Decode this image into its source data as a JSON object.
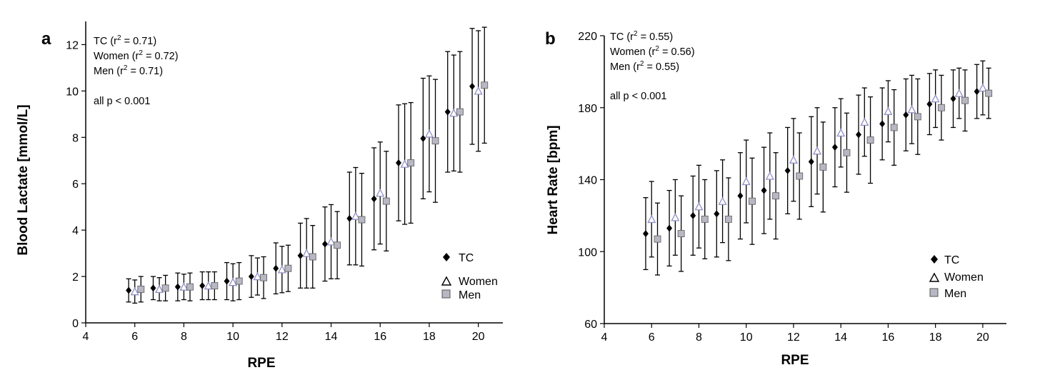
{
  "chart_data": [
    {
      "type": "scatter",
      "panel_label": "a",
      "xlabel": "RPE",
      "ylabel": "Blood Lactate [mmol/L]",
      "xlim": [
        4,
        21
      ],
      "ylim": [
        0,
        13
      ],
      "xticks": [
        4,
        6,
        8,
        10,
        12,
        14,
        16,
        18,
        20
      ],
      "yticks": [
        0,
        2,
        4,
        6,
        8,
        10,
        12
      ],
      "annotations": [
        "TC (r",
        "2",
        " = 0.71)",
        "Women (r",
        "2",
        " = 0.72)",
        "Men (r",
        "2",
        " = 0.71)",
        "all p < 0.001"
      ],
      "annotation_lines": [
        {
          "pre": "TC (r",
          "sup": "2",
          "post": " = 0.71)"
        },
        {
          "pre": "Women (r",
          "sup": "2",
          "post": " = 0.72)"
        },
        {
          "pre": "Men (r",
          "sup": "2",
          "post": " = 0.71)"
        }
      ],
      "annotation_p": "all p < 0.001",
      "legend_position": "bottom-right",
      "x": [
        6,
        7,
        8,
        9,
        10,
        11,
        12,
        13,
        14,
        15,
        16,
        17,
        18,
        19,
        20
      ],
      "series": [
        {
          "name": "TC",
          "marker": "diamond",
          "color": "#000000",
          "offset": -0.25,
          "values": [
            1.4,
            1.5,
            1.55,
            1.6,
            1.8,
            2.0,
            2.35,
            2.9,
            3.4,
            4.5,
            5.35,
            6.9,
            7.95,
            9.1,
            10.2
          ],
          "sd": [
            0.5,
            0.5,
            0.6,
            0.6,
            0.8,
            0.9,
            1.1,
            1.4,
            1.6,
            2.0,
            2.2,
            2.5,
            2.6,
            2.6,
            2.5
          ]
        },
        {
          "name": "Women",
          "marker": "triangle",
          "color": "#9090c8",
          "offset": 0,
          "values": [
            1.35,
            1.45,
            1.55,
            1.6,
            1.75,
            2.0,
            2.3,
            3.0,
            3.5,
            4.6,
            5.6,
            6.85,
            8.15,
            9.05,
            10.0
          ],
          "sd": [
            0.5,
            0.5,
            0.55,
            0.6,
            0.8,
            0.8,
            1.0,
            1.5,
            1.6,
            2.1,
            2.2,
            2.6,
            2.5,
            2.5,
            2.6
          ]
        },
        {
          "name": "Men",
          "marker": "square",
          "color": "#b8b8c4",
          "offset": 0.25,
          "values": [
            1.45,
            1.5,
            1.55,
            1.6,
            1.8,
            1.95,
            2.35,
            2.85,
            3.35,
            4.45,
            5.25,
            6.9,
            7.85,
            9.1,
            10.25
          ],
          "sd": [
            0.55,
            0.55,
            0.6,
            0.6,
            0.8,
            0.9,
            1.0,
            1.35,
            1.45,
            2.0,
            2.15,
            2.6,
            2.65,
            2.6,
            2.5
          ]
        }
      ]
    },
    {
      "type": "scatter",
      "panel_label": "b",
      "xlabel": "RPE",
      "ylabel": "Heart Rate [bpm]",
      "xlim": [
        4,
        21
      ],
      "ylim": [
        60,
        220
      ],
      "xticks": [
        4,
        6,
        8,
        10,
        12,
        14,
        16,
        18,
        20
      ],
      "yticks": [
        60,
        100,
        140,
        180,
        220
      ],
      "annotation_lines": [
        {
          "pre": "TC (r",
          "sup": "2",
          "post": " = 0.55)"
        },
        {
          "pre": "Women (r",
          "sup": "2",
          "post": " = 0.56)"
        },
        {
          "pre": "Men (r",
          "sup": "2",
          "post": " = 0.55)"
        }
      ],
      "annotation_p": "all p < 0.001",
      "legend_position": "bottom-right",
      "x": [
        6,
        7,
        8,
        9,
        10,
        11,
        12,
        13,
        14,
        15,
        16,
        17,
        18,
        19,
        20
      ],
      "series": [
        {
          "name": "TC",
          "marker": "diamond",
          "color": "#000000",
          "offset": -0.25,
          "values": [
            110,
            113,
            120,
            121,
            131,
            134,
            145,
            150,
            158,
            165,
            171,
            176,
            182,
            185,
            189
          ],
          "sd": [
            20,
            21,
            22,
            24,
            24,
            24,
            24,
            25,
            22,
            22,
            20,
            20,
            17,
            16,
            15
          ]
        },
        {
          "name": "Women",
          "marker": "triangle",
          "color": "#9090c8",
          "offset": 0,
          "values": [
            118,
            119,
            125,
            128,
            139,
            142,
            151,
            156,
            166,
            172,
            178,
            179,
            185,
            188,
            191
          ],
          "sd": [
            21,
            21,
            23,
            23,
            23,
            24,
            23,
            24,
            19,
            19,
            17,
            19,
            16,
            14,
            15
          ]
        },
        {
          "name": "Men",
          "marker": "square",
          "color": "#b8b8c4",
          "offset": 0.25,
          "values": [
            107,
            110,
            118,
            118,
            128,
            131,
            142,
            147,
            155,
            162,
            169,
            175,
            180,
            184,
            188
          ],
          "sd": [
            20,
            21,
            22,
            23,
            24,
            24,
            24,
            25,
            22,
            24,
            21,
            21,
            18,
            17,
            14
          ]
        }
      ]
    }
  ]
}
